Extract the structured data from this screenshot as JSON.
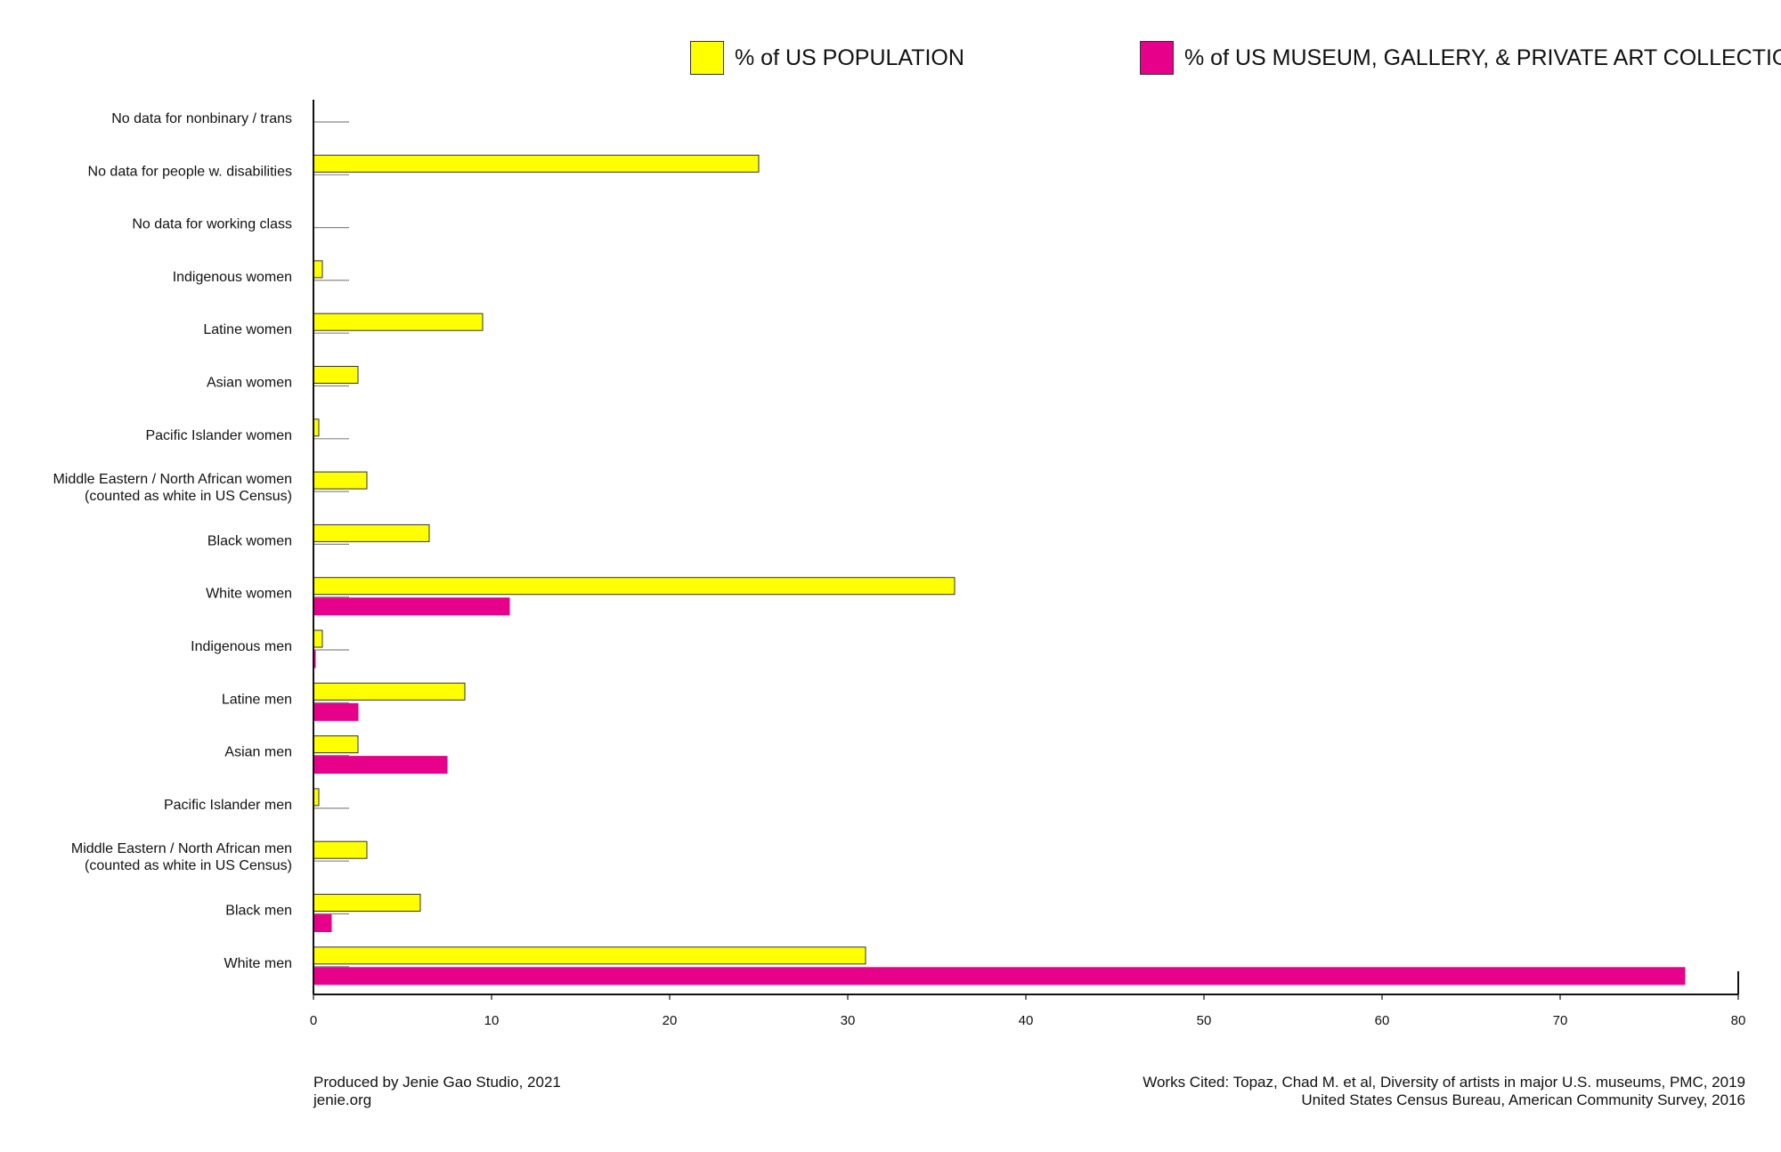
{
  "legend": {
    "population_label": "% of US POPULATION",
    "collections_label": "% of US MUSEUM, GALLERY, & PRIVATE ART COLLECTIONS"
  },
  "colors": {
    "population": "#ffff00",
    "collections": "#e6008a",
    "axis": "#111111",
    "bar_border": "#333333",
    "baseline_stub": "#888888"
  },
  "footer": {
    "credit_line1": "Produced by Jenie Gao Studio, 2021",
    "credit_line2": "jenie.org",
    "cited_line1": "Works Cited: Topaz, Chad M. et al, Diversity of artists in major U.S. museums, PMC, 2019",
    "cited_line2": "United States Census Bureau, American Community Survey, 2016"
  },
  "chart_data": {
    "type": "bar",
    "orientation": "horizontal",
    "title": "",
    "xlabel": "",
    "ylabel": "",
    "xlim": [
      0,
      80
    ],
    "xticks": [
      0,
      10,
      20,
      30,
      40,
      50,
      60,
      70,
      80
    ],
    "grid": false,
    "legend_position": "top-right",
    "categories": [
      [
        "No data for nonbinary / trans"
      ],
      [
        "No data for people w. disabilities"
      ],
      [
        "No data for working class"
      ],
      [
        "Indigenous women"
      ],
      [
        "Latine women"
      ],
      [
        "Asian women"
      ],
      [
        "Pacific Islander women"
      ],
      [
        "Middle Eastern / North African women",
        "(counted as white in US Census)"
      ],
      [
        "Black women"
      ],
      [
        "White women"
      ],
      [
        "Indigenous men"
      ],
      [
        "Latine men"
      ],
      [
        "Asian men"
      ],
      [
        "Pacific Islander men"
      ],
      [
        "Middle Eastern / North African men",
        "(counted as white in US Census)"
      ],
      [
        "Black men"
      ],
      [
        "White men"
      ]
    ],
    "series": [
      {
        "name": "% of US POPULATION",
        "values": [
          0,
          25,
          0,
          0.5,
          9.5,
          2.5,
          0.3,
          3,
          6.5,
          36,
          0.5,
          8.5,
          2.5,
          0.3,
          3,
          6,
          31
        ]
      },
      {
        "name": "% of US MUSEUM, GALLERY, & PRIVATE ART COLLECTIONS",
        "values": [
          0,
          0,
          0,
          0,
          0,
          0,
          0,
          0,
          0,
          11,
          0.1,
          2.5,
          7.5,
          0,
          0,
          1,
          77
        ]
      }
    ]
  }
}
